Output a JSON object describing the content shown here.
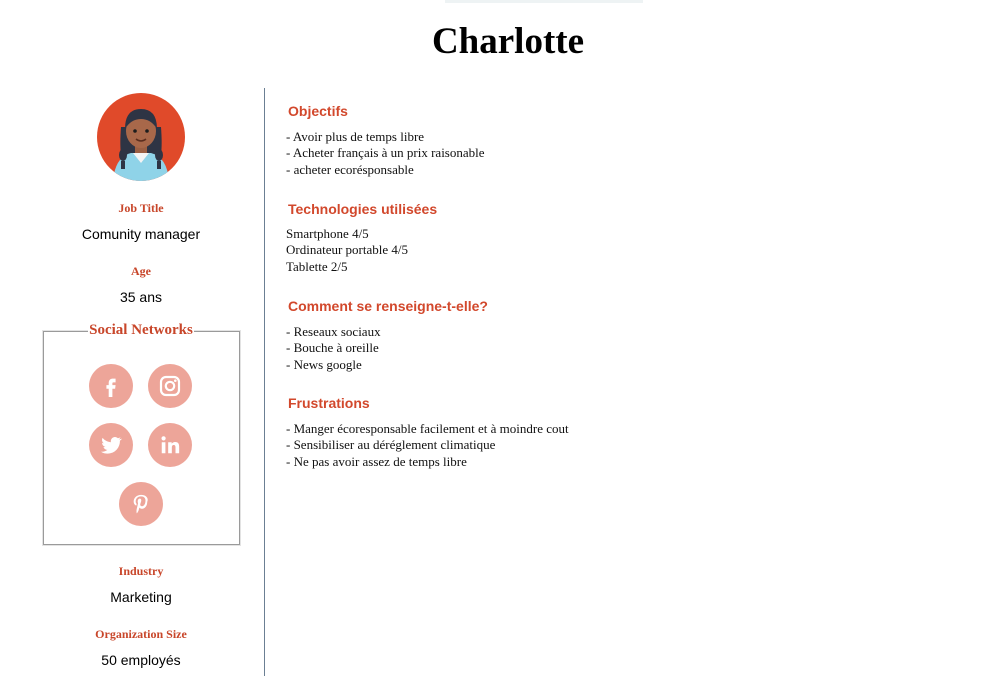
{
  "persona": {
    "name": "Charlotte"
  },
  "profile": {
    "job_title_label": "Job Title",
    "job_title": "Comunity manager",
    "age_label": "Age",
    "age": "35 ans",
    "social_label": "Social Networks",
    "industry_label": "Industry",
    "industry": "Marketing",
    "org_size_label": "Organization Size",
    "org_size": "50 employés"
  },
  "social_icons": [
    "facebook-icon",
    "instagram-icon",
    "twitter-icon",
    "linkedin-icon",
    "pinterest-icon"
  ],
  "colors": {
    "accent": "#c8462a",
    "social_bg": "#eda599",
    "avatar_bg": "#e04a2a"
  },
  "sections": {
    "objectifs": {
      "title": "Objectifs",
      "items": [
        "- Avoir plus de temps libre",
        "- Acheter français à un prix raisonable",
        "- acheter ecorésponsable"
      ]
    },
    "technologies": {
      "title": "Technologies utilisées",
      "items": [
        "Smartphone 4/5",
        "Ordinateur portable 4/5",
        "Tablette 2/5"
      ]
    },
    "renseigne": {
      "title": "Comment se renseigne-t-elle?",
      "items": [
        "- Reseaux sociaux",
        "- Bouche à oreille",
        "- News google"
      ]
    },
    "frustrations": {
      "title": "Frustrations",
      "items": [
        "- Manger écoresponsable facilement et à moindre cout",
        "- Sensibiliser au déréglement climatique",
        "- Ne pas avoir assez de temps libre"
      ]
    }
  }
}
